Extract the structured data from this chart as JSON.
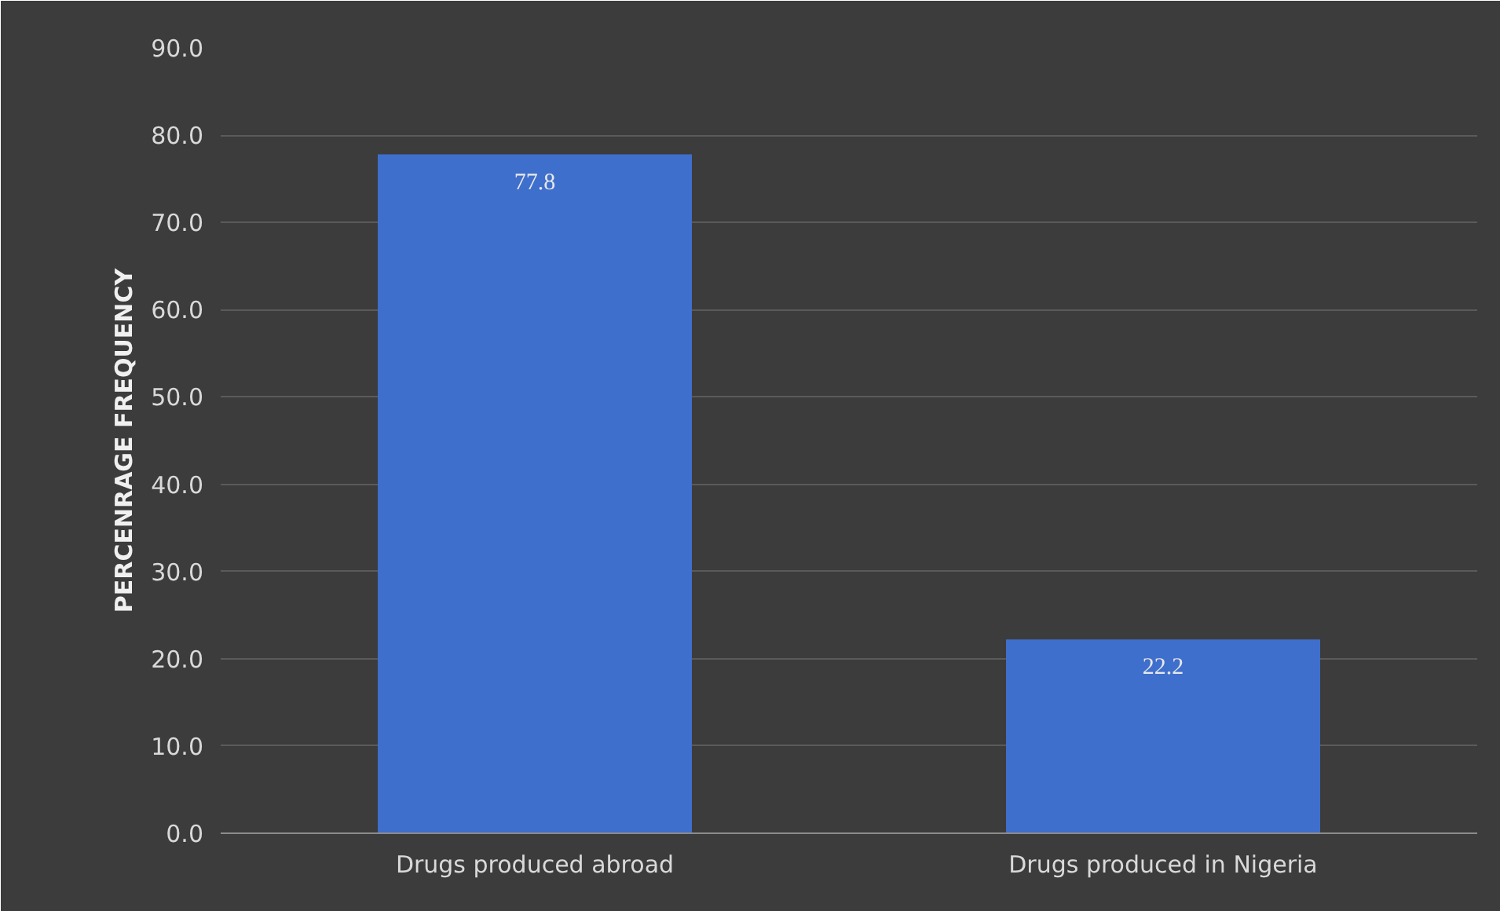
{
  "chart_data": {
    "type": "bar",
    "ylabel": "PERCENRAGE FREQUENCY",
    "categories": [
      "Drugs produced abroad",
      "Drugs produced in Nigeria"
    ],
    "values": [
      77.8,
      22.2
    ],
    "color": "#3f6fcc",
    "data_labels": true,
    "ylim": [
      0,
      90
    ],
    "yticks": [
      {
        "value": 0,
        "label": "0.0"
      },
      {
        "value": 10,
        "label": "10.0"
      },
      {
        "value": 20,
        "label": "20.0"
      },
      {
        "value": 30,
        "label": "30.0"
      },
      {
        "value": 40,
        "label": "40.0"
      },
      {
        "value": 50,
        "label": "50.0"
      },
      {
        "value": 60,
        "label": "60.0"
      },
      {
        "value": 70,
        "label": "70.0"
      },
      {
        "value": 80,
        "label": "80.0"
      },
      {
        "value": 90,
        "label": "90.0"
      }
    ],
    "grid": "y"
  }
}
